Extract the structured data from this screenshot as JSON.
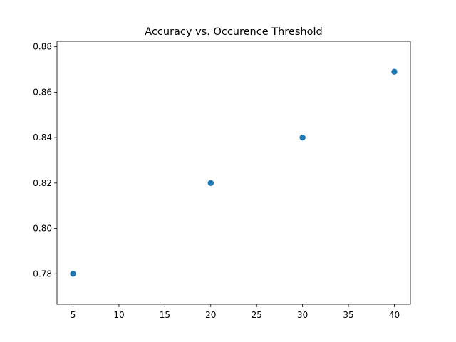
{
  "chart_data": {
    "type": "scatter",
    "title": "Accuracy vs. Occurence Threshold",
    "xlabel": "",
    "ylabel": "",
    "x": [
      5,
      20,
      30,
      40
    ],
    "y": [
      0.78,
      0.82,
      0.84,
      0.869
    ],
    "xlim": [
      3.25,
      41.75
    ],
    "ylim": [
      0.7666,
      0.8824
    ],
    "xticks": [
      5,
      10,
      15,
      20,
      25,
      30,
      35,
      40
    ],
    "xtick_labels": [
      "5",
      "10",
      "15",
      "20",
      "25",
      "30",
      "35",
      "40"
    ],
    "yticks": [
      0.78,
      0.8,
      0.82,
      0.84,
      0.86,
      0.88
    ],
    "ytick_labels": [
      "0.78",
      "0.80",
      "0.82",
      "0.84",
      "0.86",
      "0.88"
    ],
    "grid": false,
    "marker_color": "#1f77b4"
  }
}
